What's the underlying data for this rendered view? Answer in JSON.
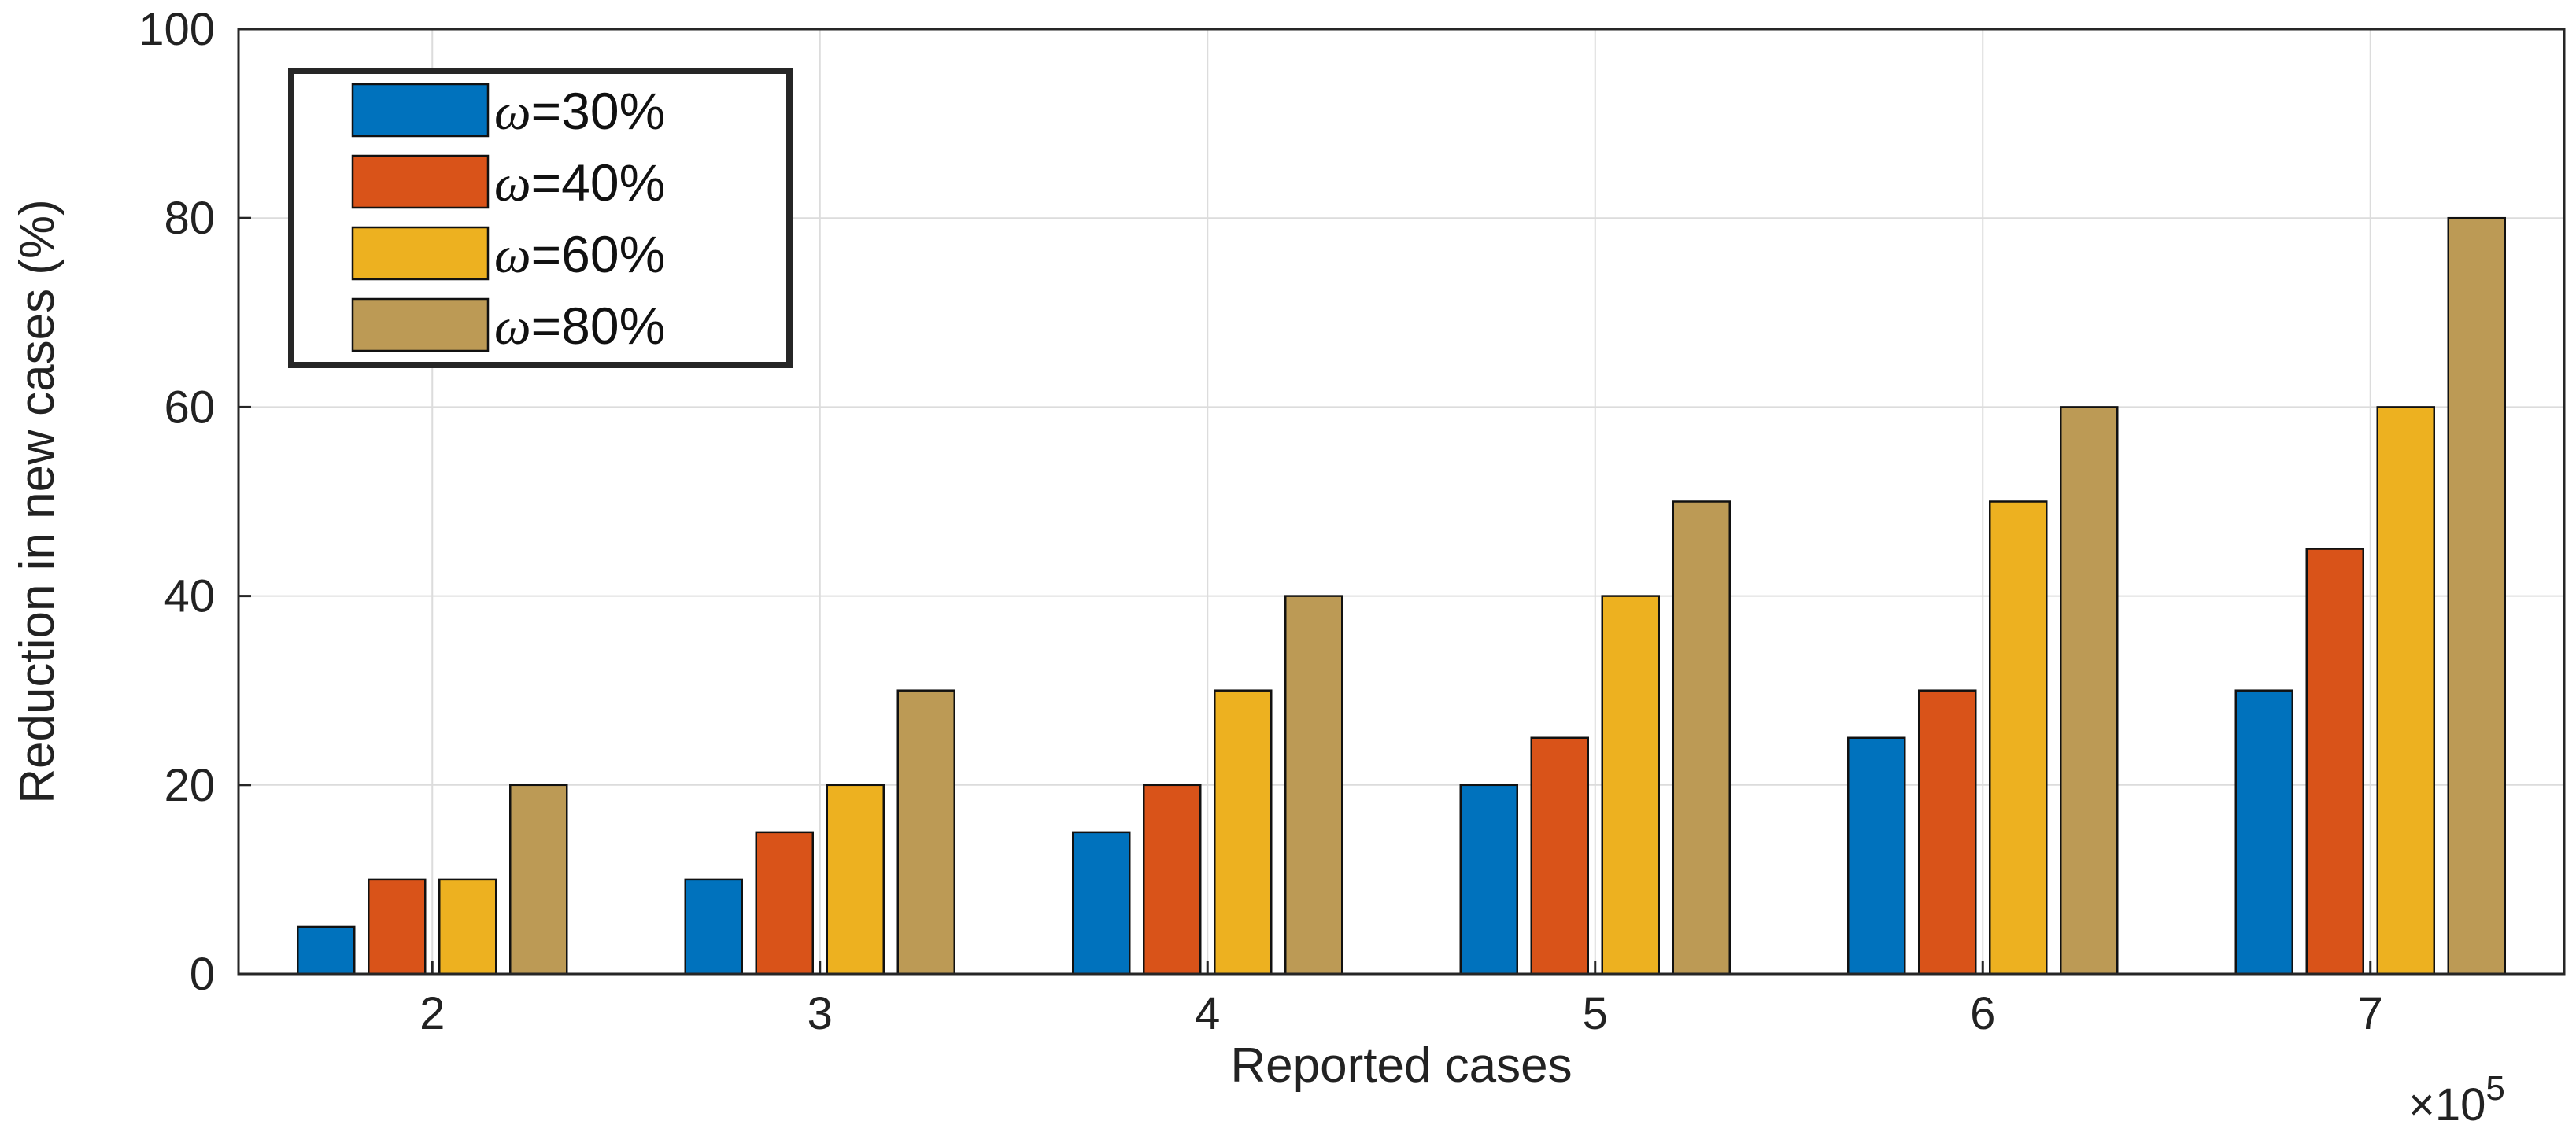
{
  "chart_data": {
    "type": "bar",
    "title": "",
    "xlabel": "Reported cases",
    "ylabel": "Reduction in new cases (%)",
    "x_multiplier_label": "×10",
    "x_multiplier_exponent": "5",
    "categories": [
      "2",
      "3",
      "4",
      "5",
      "6",
      "7"
    ],
    "y_ticks": [
      "0",
      "20",
      "40",
      "60",
      "80",
      "100"
    ],
    "ylim": [
      0,
      100
    ],
    "grid": true,
    "legend_position": "top-left",
    "series": [
      {
        "symbol": "ω",
        "name": "=30%",
        "color": "#0072BD",
        "values": [
          5,
          10,
          15,
          20,
          25,
          30
        ]
      },
      {
        "symbol": "ω",
        "name": "=40%",
        "color": "#D95319",
        "values": [
          10,
          15,
          20,
          25,
          30,
          45
        ]
      },
      {
        "symbol": "ω",
        "name": "=60%",
        "color": "#EDB120",
        "values": [
          10,
          20,
          30,
          40,
          50,
          60
        ]
      },
      {
        "symbol": "ω",
        "name": "=80%",
        "color": "#BC9A55",
        "values": [
          20,
          30,
          40,
          50,
          60,
          80
        ]
      }
    ]
  }
}
